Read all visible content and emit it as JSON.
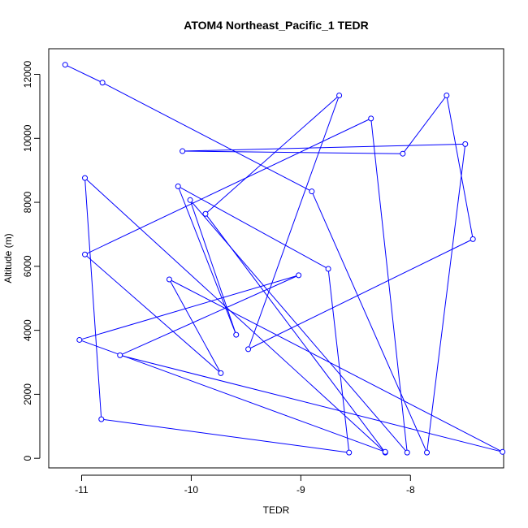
{
  "chart_data": {
    "type": "line",
    "title": "ATOM4 Northeast_Pacific_1 TEDR",
    "xlabel": "TEDR",
    "ylabel": "Altitude (m)",
    "xlim": [
      -11.3,
      -7.15
    ],
    "ylim": [
      -300,
      12800
    ],
    "x_ticks": [
      -11,
      -10,
      -9,
      -8
    ],
    "y_ticks": [
      0,
      2000,
      4000,
      6000,
      8000,
      10000,
      12000
    ],
    "x_tick_labels": [
      "-11",
      "-10",
      "-9",
      "-8"
    ],
    "y_tick_labels": [
      "0",
      "2000",
      "4000",
      "6000",
      "8000",
      "10000",
      "12000"
    ],
    "grid": false,
    "series": [
      {
        "color": "#0000ff",
        "marker": "open-circle",
        "points": [
          {
            "x": -11.15,
            "y": 12300
          },
          {
            "x": -10.81,
            "y": 11740
          },
          {
            "x": -8.9,
            "y": 8340
          },
          {
            "x": -7.85,
            "y": 180
          },
          {
            "x": -7.5,
            "y": 9820
          },
          {
            "x": -10.08,
            "y": 9600
          },
          {
            "x": -8.07,
            "y": 9520
          },
          {
            "x": -7.67,
            "y": 11340
          },
          {
            "x": -7.43,
            "y": 6850
          },
          {
            "x": -9.48,
            "y": 3410
          },
          {
            "x": -8.65,
            "y": 11340
          },
          {
            "x": -9.87,
            "y": 7640
          },
          {
            "x": -8.23,
            "y": 180
          },
          {
            "x": -10.97,
            "y": 8760
          },
          {
            "x": -10.82,
            "y": 1220
          },
          {
            "x": -8.56,
            "y": 180
          },
          {
            "x": -8.75,
            "y": 5920
          },
          {
            "x": -10.12,
            "y": 8500
          },
          {
            "x": -9.59,
            "y": 3860
          },
          {
            "x": -10.01,
            "y": 8070
          },
          {
            "x": -8.03,
            "y": 180
          },
          {
            "x": -8.36,
            "y": 10620
          },
          {
            "x": -10.97,
            "y": 6370
          },
          {
            "x": -9.73,
            "y": 2660
          },
          {
            "x": -10.2,
            "y": 5590
          },
          {
            "x": -7.16,
            "y": 200
          },
          {
            "x": -10.65,
            "y": 3220
          },
          {
            "x": -9.02,
            "y": 5720
          },
          {
            "x": -11.02,
            "y": 3700
          },
          {
            "x": -8.23,
            "y": 200
          }
        ]
      }
    ]
  }
}
